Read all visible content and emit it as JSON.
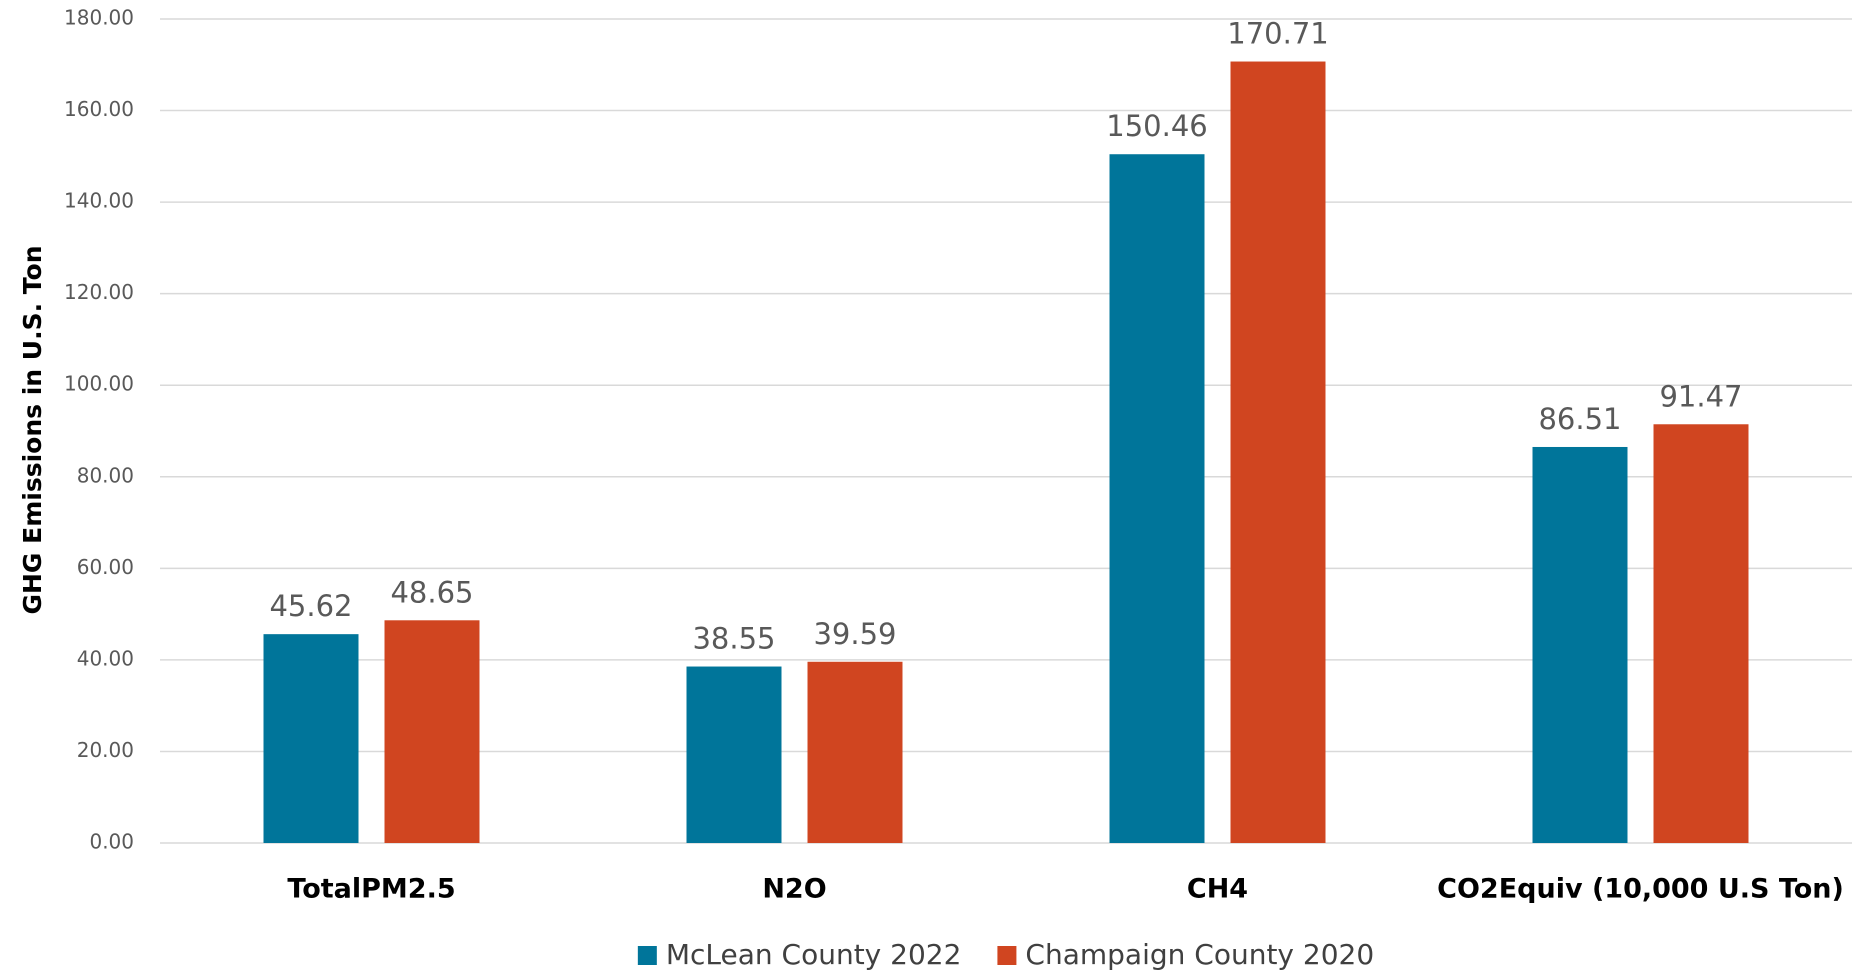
{
  "chart_data": {
    "type": "bar",
    "y_label": "GHG Emissions in U.S. Ton",
    "categories": [
      "TotalPM2.5",
      "N2O",
      "CH4",
      "CO2Equiv (10,000 U.S Ton)"
    ],
    "series": [
      {
        "name": "McLean County 2022",
        "color": "#00759a",
        "values": [
          45.62,
          38.55,
          150.46,
          86.51
        ]
      },
      {
        "name": "Champaign County 2020",
        "color": "#d04520",
        "values": [
          48.65,
          39.59,
          170.71,
          91.47
        ]
      }
    ],
    "ylim": [
      0,
      180
    ],
    "yticks": [
      {
        "value": 0,
        "label": "0.00"
      },
      {
        "value": 20,
        "label": "20.00"
      },
      {
        "value": 40,
        "label": "40.00"
      },
      {
        "value": 60,
        "label": "60.00"
      },
      {
        "value": 80,
        "label": "80.00"
      },
      {
        "value": 100,
        "label": "100.00"
      },
      {
        "value": 120,
        "label": "120.00"
      },
      {
        "value": 140,
        "label": "140.00"
      },
      {
        "value": 160,
        "label": "160.00"
      },
      {
        "value": 180,
        "label": "180.00"
      }
    ],
    "grid": true,
    "legend": "bottom"
  }
}
